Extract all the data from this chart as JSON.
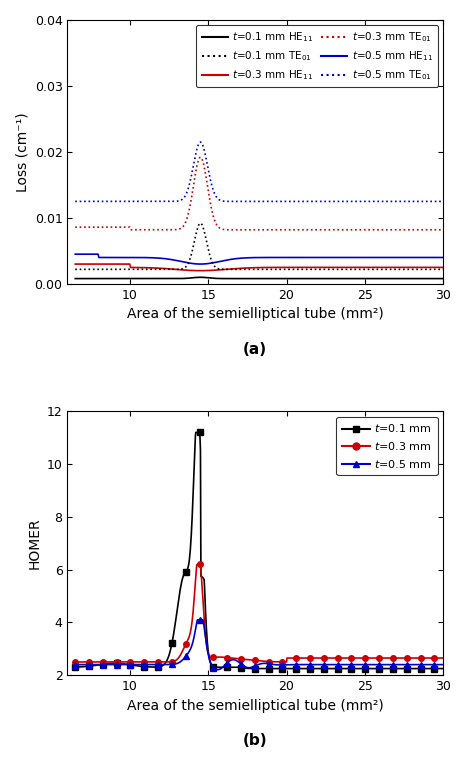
{
  "fig_width": 4.66,
  "fig_height": 7.64,
  "dpi": 100,
  "panel_a": {
    "xlabel": "Area of the semielliptical tube (mm²)",
    "ylabel": "Loss (cm⁻¹)",
    "xlim": [
      6,
      30
    ],
    "ylim": [
      0,
      0.04
    ],
    "xticks": [
      10,
      15,
      20,
      25,
      30
    ],
    "yticks": [
      0.0,
      0.01,
      0.02,
      0.03,
      0.04
    ],
    "label_bold": "(a)"
  },
  "panel_b": {
    "xlabel": "Area of the semielliptical tube (mm²)",
    "ylabel": "HOMER",
    "xlim": [
      6,
      30
    ],
    "ylim": [
      2,
      12
    ],
    "xticks": [
      10,
      15,
      20,
      25,
      30
    ],
    "yticks": [
      2,
      4,
      6,
      8,
      10,
      12
    ],
    "label_bold": "(b)"
  },
  "colors": {
    "black": "#000000",
    "red": "#cc0000",
    "blue": "#0000cc"
  }
}
